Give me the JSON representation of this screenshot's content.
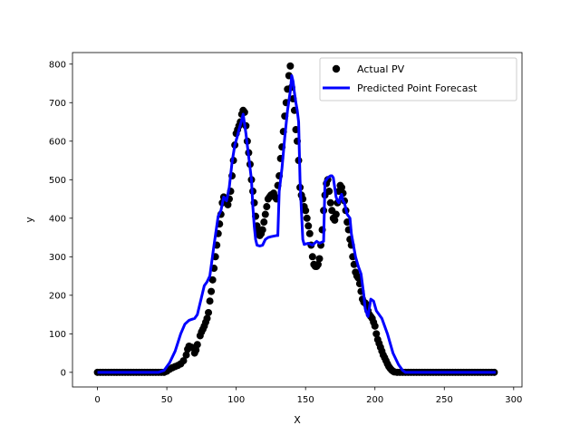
{
  "chart_data": {
    "type": "scatter",
    "title": "",
    "xlabel": "X",
    "ylabel": "y",
    "xlim": [
      -18,
      306
    ],
    "ylim": [
      -38,
      830
    ],
    "xticks": [
      0,
      50,
      100,
      150,
      200,
      250,
      300
    ],
    "yticks": [
      0,
      100,
      200,
      300,
      400,
      500,
      600,
      700,
      800
    ],
    "grid": false,
    "legend_position": "upper-right",
    "colors": {
      "actual": "#000000",
      "predicted": "#0000ff"
    },
    "series": [
      {
        "name": "Actual PV",
        "kind": "scatter",
        "points": [
          [
            0,
            0
          ],
          [
            2,
            0
          ],
          [
            4,
            0
          ],
          [
            6,
            0
          ],
          [
            8,
            0
          ],
          [
            10,
            0
          ],
          [
            12,
            0
          ],
          [
            14,
            0
          ],
          [
            16,
            0
          ],
          [
            18,
            0
          ],
          [
            20,
            0
          ],
          [
            22,
            0
          ],
          [
            24,
            0
          ],
          [
            26,
            0
          ],
          [
            28,
            0
          ],
          [
            30,
            0
          ],
          [
            32,
            0
          ],
          [
            34,
            0
          ],
          [
            36,
            0
          ],
          [
            38,
            0
          ],
          [
            40,
            0
          ],
          [
            42,
            0
          ],
          [
            44,
            0
          ],
          [
            46,
            0
          ],
          [
            48,
            0
          ],
          [
            50,
            3
          ],
          [
            52,
            8
          ],
          [
            54,
            12
          ],
          [
            56,
            15
          ],
          [
            58,
            18
          ],
          [
            60,
            22
          ],
          [
            62,
            30
          ],
          [
            64,
            45
          ],
          [
            65,
            60
          ],
          [
            66,
            68
          ],
          [
            68,
            65
          ],
          [
            70,
            50
          ],
          [
            71,
            58
          ],
          [
            72,
            72
          ],
          [
            74,
            95
          ],
          [
            75,
            105
          ],
          [
            76,
            112
          ],
          [
            77,
            120
          ],
          [
            78,
            130
          ],
          [
            79,
            140
          ],
          [
            80,
            155
          ],
          [
            81,
            185
          ],
          [
            82,
            210
          ],
          [
            83,
            240
          ],
          [
            84,
            270
          ],
          [
            85,
            300
          ],
          [
            86,
            330
          ],
          [
            87,
            360
          ],
          [
            88,
            385
          ],
          [
            89,
            410
          ],
          [
            90,
            440
          ],
          [
            91,
            455
          ],
          [
            92,
            450
          ],
          [
            93,
            445
          ],
          [
            94,
            435
          ],
          [
            95,
            450
          ],
          [
            96,
            470
          ],
          [
            97,
            510
          ],
          [
            98,
            550
          ],
          [
            99,
            590
          ],
          [
            100,
            620
          ],
          [
            101,
            630
          ],
          [
            102,
            640
          ],
          [
            103,
            650
          ],
          [
            104,
            670
          ],
          [
            105,
            680
          ],
          [
            106,
            675
          ],
          [
            107,
            640
          ],
          [
            108,
            600
          ],
          [
            109,
            570
          ],
          [
            110,
            540
          ],
          [
            111,
            500
          ],
          [
            112,
            470
          ],
          [
            113,
            440
          ],
          [
            114,
            405
          ],
          [
            115,
            380
          ],
          [
            116,
            365
          ],
          [
            117,
            355
          ],
          [
            118,
            360
          ],
          [
            119,
            370
          ],
          [
            120,
            390
          ],
          [
            121,
            410
          ],
          [
            122,
            430
          ],
          [
            123,
            450
          ],
          [
            124,
            455
          ],
          [
            125,
            460
          ],
          [
            126,
            462
          ],
          [
            127,
            465
          ],
          [
            128,
            455
          ],
          [
            129,
            450
          ],
          [
            130,
            485
          ],
          [
            131,
            510
          ],
          [
            132,
            555
          ],
          [
            133,
            585
          ],
          [
            134,
            625
          ],
          [
            135,
            665
          ],
          [
            136,
            700
          ],
          [
            137,
            735
          ],
          [
            138,
            770
          ],
          [
            139,
            795
          ],
          [
            140,
            740
          ],
          [
            141,
            710
          ],
          [
            142,
            680
          ],
          [
            143,
            630
          ],
          [
            144,
            600
          ],
          [
            145,
            550
          ],
          [
            146,
            480
          ],
          [
            147,
            460
          ],
          [
            148,
            450
          ],
          [
            149,
            430
          ],
          [
            150,
            420
          ],
          [
            151,
            400
          ],
          [
            152,
            380
          ],
          [
            153,
            360
          ],
          [
            154,
            330
          ],
          [
            155,
            300
          ],
          [
            156,
            280
          ],
          [
            157,
            275
          ],
          [
            158,
            275
          ],
          [
            159,
            280
          ],
          [
            160,
            295
          ],
          [
            161,
            330
          ],
          [
            162,
            370
          ],
          [
            163,
            420
          ],
          [
            164,
            460
          ],
          [
            165,
            490
          ],
          [
            166,
            500
          ],
          [
            167,
            470
          ],
          [
            168,
            440
          ],
          [
            169,
            420
          ],
          [
            170,
            400
          ],
          [
            171,
            395
          ],
          [
            172,
            410
          ],
          [
            173,
            440
          ],
          [
            174,
            470
          ],
          [
            175,
            485
          ],
          [
            176,
            480
          ],
          [
            177,
            465
          ],
          [
            178,
            445
          ],
          [
            179,
            420
          ],
          [
            180,
            390
          ],
          [
            181,
            370
          ],
          [
            182,
            345
          ],
          [
            183,
            330
          ],
          [
            184,
            300
          ],
          [
            185,
            280
          ],
          [
            186,
            260
          ],
          [
            187,
            250
          ],
          [
            188,
            245
          ],
          [
            189,
            230
          ],
          [
            190,
            210
          ],
          [
            191,
            190
          ],
          [
            192,
            182
          ],
          [
            193,
            180
          ],
          [
            194,
            175
          ],
          [
            195,
            160
          ],
          [
            196,
            150
          ],
          [
            197,
            145
          ],
          [
            198,
            140
          ],
          [
            199,
            130
          ],
          [
            200,
            120
          ],
          [
            201,
            100
          ],
          [
            202,
            85
          ],
          [
            203,
            75
          ],
          [
            204,
            65
          ],
          [
            205,
            55
          ],
          [
            206,
            45
          ],
          [
            207,
            38
          ],
          [
            208,
            30
          ],
          [
            209,
            22
          ],
          [
            210,
            15
          ],
          [
            211,
            10
          ],
          [
            212,
            6
          ],
          [
            213,
            3
          ],
          [
            214,
            1
          ],
          [
            216,
            0
          ],
          [
            218,
            0
          ],
          [
            220,
            0
          ],
          [
            222,
            0
          ],
          [
            224,
            0
          ],
          [
            226,
            0
          ],
          [
            228,
            0
          ],
          [
            230,
            0
          ],
          [
            232,
            0
          ],
          [
            234,
            0
          ],
          [
            236,
            0
          ],
          [
            238,
            0
          ],
          [
            240,
            0
          ],
          [
            242,
            0
          ],
          [
            244,
            0
          ],
          [
            246,
            0
          ],
          [
            248,
            0
          ],
          [
            250,
            0
          ],
          [
            252,
            0
          ],
          [
            254,
            0
          ],
          [
            256,
            0
          ],
          [
            258,
            0
          ],
          [
            260,
            0
          ],
          [
            262,
            0
          ],
          [
            264,
            0
          ],
          [
            266,
            0
          ],
          [
            268,
            0
          ],
          [
            270,
            0
          ],
          [
            272,
            0
          ],
          [
            274,
            0
          ],
          [
            276,
            0
          ],
          [
            278,
            0
          ],
          [
            280,
            0
          ],
          [
            282,
            0
          ],
          [
            284,
            0
          ],
          [
            286,
            0
          ]
        ]
      },
      {
        "name": "Predicted Point Forecast",
        "kind": "line",
        "points": [
          [
            0,
            0
          ],
          [
            44,
            0
          ],
          [
            48,
            5
          ],
          [
            52,
            25
          ],
          [
            56,
            55
          ],
          [
            60,
            100
          ],
          [
            63,
            125
          ],
          [
            66,
            135
          ],
          [
            70,
            140
          ],
          [
            72,
            150
          ],
          [
            75,
            195
          ],
          [
            77,
            225
          ],
          [
            79,
            235
          ],
          [
            81,
            250
          ],
          [
            84,
            330
          ],
          [
            87,
            405
          ],
          [
            89,
            420
          ],
          [
            91,
            455
          ],
          [
            93,
            445
          ],
          [
            95,
            480
          ],
          [
            97,
            545
          ],
          [
            99,
            590
          ],
          [
            101,
            615
          ],
          [
            102,
            630
          ],
          [
            104,
            655
          ],
          [
            105,
            670
          ],
          [
            107,
            620
          ],
          [
            109,
            560
          ],
          [
            111,
            500
          ],
          [
            112,
            430
          ],
          [
            113,
            380
          ],
          [
            114,
            345
          ],
          [
            115,
            330
          ],
          [
            117,
            328
          ],
          [
            119,
            330
          ],
          [
            121,
            345
          ],
          [
            123,
            350
          ],
          [
            125,
            352
          ],
          [
            129,
            355
          ],
          [
            130,
            355
          ],
          [
            131,
            470
          ],
          [
            133,
            530
          ],
          [
            135,
            610
          ],
          [
            137,
            680
          ],
          [
            139,
            730
          ],
          [
            140,
            770
          ],
          [
            141,
            755
          ],
          [
            142,
            725
          ],
          [
            143,
            700
          ],
          [
            144,
            680
          ],
          [
            145,
            650
          ],
          [
            146,
            500
          ],
          [
            147,
            420
          ],
          [
            148,
            345
          ],
          [
            149,
            332
          ],
          [
            152,
            335
          ],
          [
            155,
            330
          ],
          [
            158,
            340
          ],
          [
            160,
            335
          ],
          [
            163,
            340
          ],
          [
            164,
            495
          ],
          [
            166,
            505
          ],
          [
            168,
            510
          ],
          [
            169,
            510
          ],
          [
            170,
            505
          ],
          [
            172,
            455
          ],
          [
            173,
            445
          ],
          [
            174,
            440
          ],
          [
            175,
            455
          ],
          [
            176,
            462
          ],
          [
            177,
            445
          ],
          [
            178,
            440
          ],
          [
            180,
            410
          ],
          [
            182,
            400
          ],
          [
            183,
            360
          ],
          [
            184,
            340
          ],
          [
            186,
            300
          ],
          [
            188,
            275
          ],
          [
            190,
            255
          ],
          [
            192,
            200
          ],
          [
            193,
            165
          ],
          [
            195,
            145
          ],
          [
            197,
            190
          ],
          [
            199,
            185
          ],
          [
            201,
            160
          ],
          [
            203,
            150
          ],
          [
            205,
            140
          ],
          [
            207,
            120
          ],
          [
            209,
            100
          ],
          [
            211,
            75
          ],
          [
            213,
            50
          ],
          [
            215,
            35
          ],
          [
            217,
            20
          ],
          [
            220,
            5
          ],
          [
            222,
            0
          ],
          [
            287,
            0
          ]
        ]
      }
    ]
  }
}
